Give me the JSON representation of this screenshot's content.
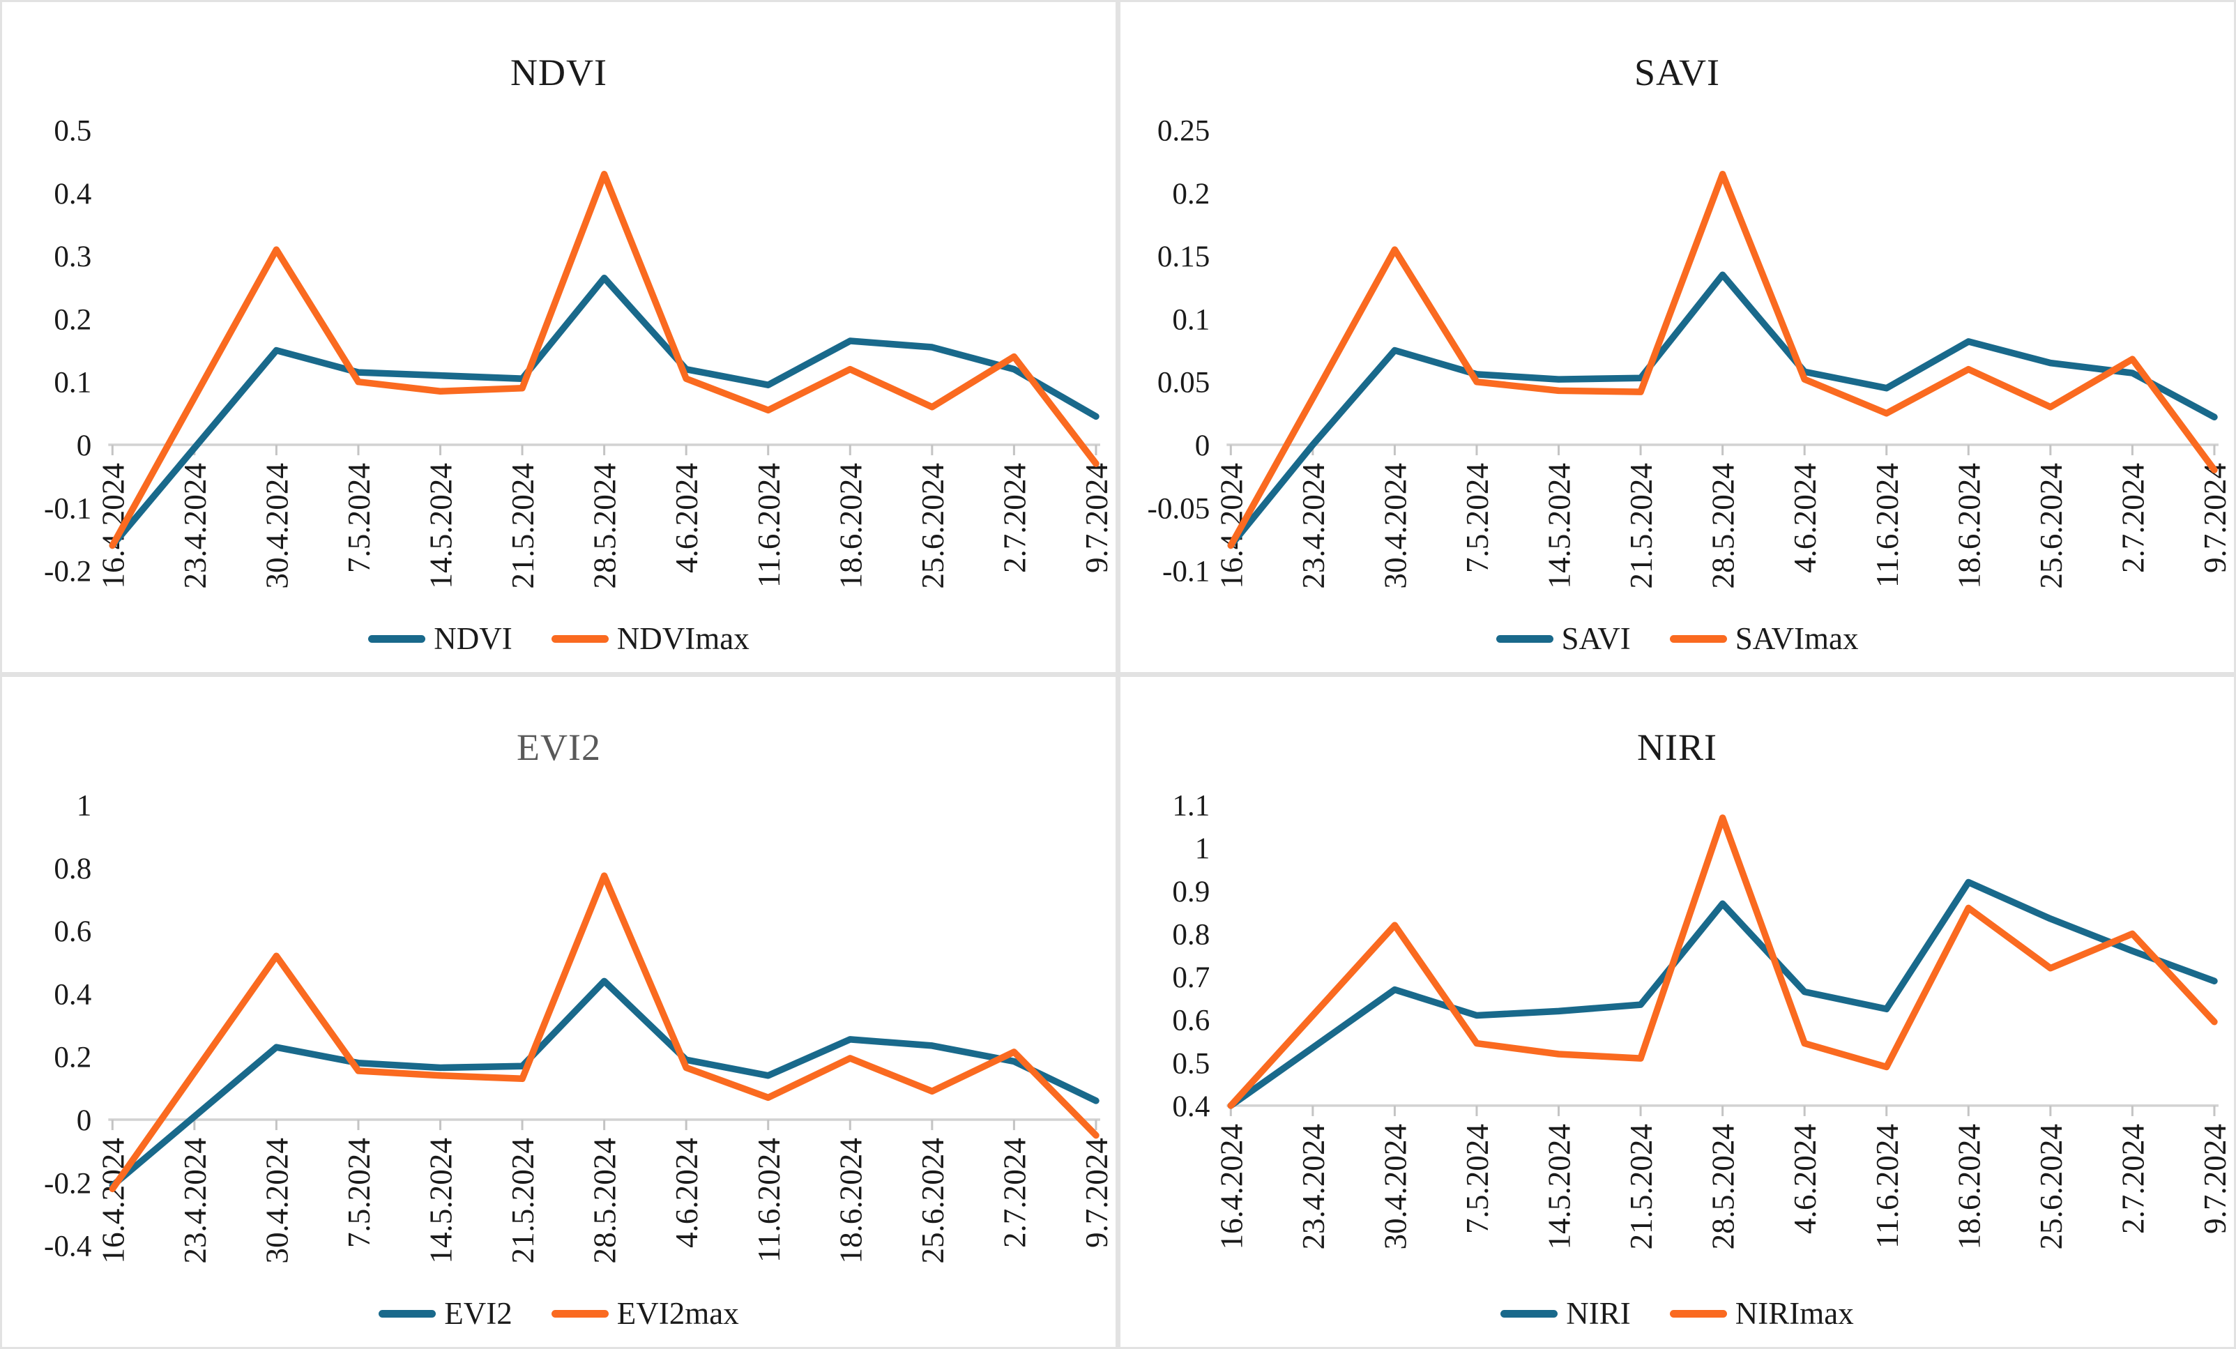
{
  "figure": {
    "description": "2x2 grid of vegetation index time-series line charts",
    "divider_color": "#e2e2e2",
    "background": "#ffffff"
  },
  "styles": {
    "axis_line_color": "#d2d2d2",
    "tick_color": "#c4c4c4",
    "label_color": "#1a1a1a",
    "series1_color": "#19698B",
    "series2_color": "#FA6A20",
    "title_default_color": "#1a1a1a",
    "title_evi2_color": "#595959"
  },
  "categories": [
    "16.4.2024",
    "23.4.2024",
    "30.4.2024",
    "7.5.2024",
    "14.5.2024",
    "21.5.2024",
    "28.5.2024",
    "4.6.2024",
    "11.6.2024",
    "18.6.2024",
    "25.6.2024",
    "2.7.2024",
    "9.7.2024"
  ],
  "chart_data": [
    {
      "id": "ndvi",
      "type": "line",
      "title": "NDVI",
      "title_color": "#1a1a1a",
      "xlabel": "",
      "ylabel": "",
      "ylim": [
        -0.2,
        0.5
      ],
      "ytick_labels": [
        "0.5",
        "0.4",
        "0.3",
        "0.2",
        "0.1",
        "0",
        "-0.1",
        "-0.2"
      ],
      "x_label_mode": "zero",
      "grid": "zero-axis-only",
      "legend_position": "bottom",
      "series": [
        {
          "name": "NDVI",
          "color": "#19698B",
          "values": [
            -0.16,
            -0.005,
            0.15,
            0.115,
            0.11,
            0.105,
            0.265,
            0.12,
            0.095,
            0.165,
            0.155,
            0.12,
            0.045
          ]
        },
        {
          "name": "NDVImax",
          "color": "#FA6A20",
          "values": [
            -0.16,
            0.075,
            0.31,
            0.1,
            0.085,
            0.09,
            0.43,
            0.105,
            0.055,
            0.12,
            0.06,
            0.14,
            -0.03
          ]
        }
      ]
    },
    {
      "id": "savi",
      "type": "line",
      "title": "SAVI",
      "title_color": "#1a1a1a",
      "xlabel": "",
      "ylabel": "",
      "ylim": [
        -0.1,
        0.25
      ],
      "ytick_labels": [
        "0.25",
        "0.2",
        "0.15",
        "0.1",
        "0.05",
        "0",
        "-0.05",
        "-0.1"
      ],
      "x_label_mode": "zero",
      "grid": "zero-axis-only",
      "legend_position": "bottom",
      "series": [
        {
          "name": "SAVI",
          "color": "#19698B",
          "values": [
            -0.08,
            0.0,
            0.075,
            0.056,
            0.052,
            0.053,
            0.135,
            0.058,
            0.045,
            0.082,
            0.065,
            0.057,
            0.022
          ]
        },
        {
          "name": "SAVImax",
          "color": "#FA6A20",
          "values": [
            -0.08,
            0.037,
            0.155,
            0.05,
            0.043,
            0.042,
            0.215,
            0.052,
            0.025,
            0.06,
            0.03,
            0.068,
            -0.02
          ]
        }
      ]
    },
    {
      "id": "evi2",
      "type": "line",
      "title": "EVI2",
      "title_color": "#595959",
      "xlabel": "",
      "ylabel": "",
      "ylim": [
        -0.4,
        1.0
      ],
      "ytick_labels": [
        "1",
        "0.8",
        "0.6",
        "0.4",
        "0.2",
        "0",
        "-0.2",
        "-0.4"
      ],
      "x_label_mode": "zero",
      "grid": "zero-axis-only",
      "legend_position": "bottom",
      "series": [
        {
          "name": "EVI2",
          "color": "#19698B",
          "values": [
            -0.21,
            0.01,
            0.23,
            0.18,
            0.165,
            0.17,
            0.44,
            0.19,
            0.14,
            0.255,
            0.235,
            0.185,
            0.06
          ]
        },
        {
          "name": "EVI2max",
          "color": "#FA6A20",
          "values": [
            -0.22,
            0.15,
            0.52,
            0.155,
            0.14,
            0.13,
            0.775,
            0.165,
            0.07,
            0.195,
            0.09,
            0.215,
            -0.05
          ]
        }
      ]
    },
    {
      "id": "niri",
      "type": "line",
      "title": "NIRI",
      "title_color": "#1a1a1a",
      "xlabel": "",
      "ylabel": "",
      "ylim": [
        0.4,
        1.1
      ],
      "ytick_labels": [
        "1.1",
        "1",
        "0.9",
        "0.8",
        "0.7",
        "0.6",
        "0.5",
        "0.4"
      ],
      "x_label_mode": "below",
      "grid": "bottom-axis-only",
      "legend_position": "bottom",
      "series": [
        {
          "name": "NIRI",
          "color": "#19698B",
          "values": [
            0.4,
            0.535,
            0.67,
            0.61,
            0.62,
            0.635,
            0.87,
            0.665,
            0.625,
            0.92,
            0.835,
            0.76,
            0.69
          ]
        },
        {
          "name": "NIRImax",
          "color": "#FA6A20",
          "values": [
            0.4,
            0.61,
            0.82,
            0.545,
            0.52,
            0.51,
            1.07,
            0.545,
            0.49,
            0.86,
            0.72,
            0.8,
            0.595
          ]
        }
      ]
    }
  ]
}
